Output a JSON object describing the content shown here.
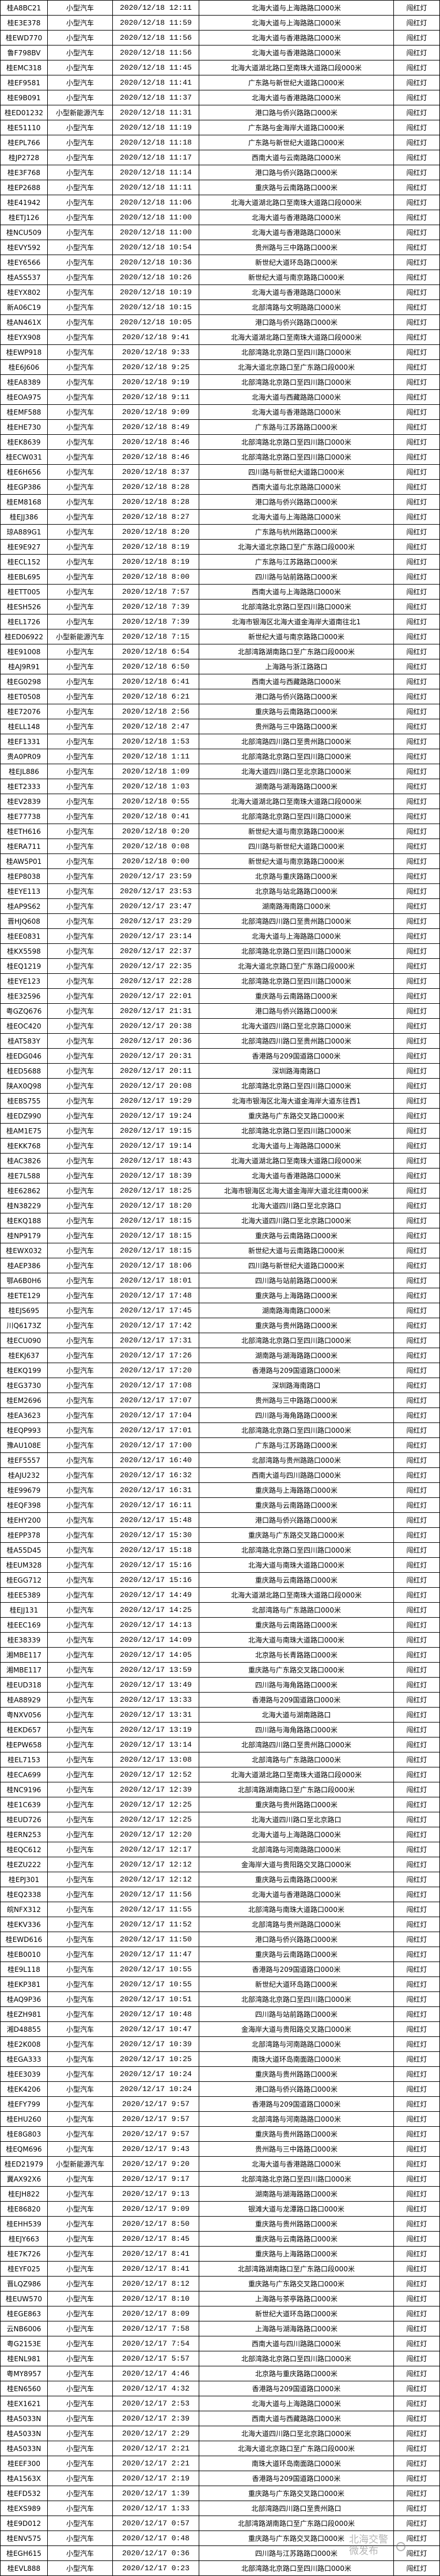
{
  "watermark": "北海交警微发布",
  "columns": [
    "plate",
    "vehicle_type",
    "time",
    "location",
    "violation"
  ],
  "rows": [
    [
      "桂A8BC21",
      "小型汽车",
      "2020/12/18 12:11",
      "北海大道与上海路路口000米",
      "闯红灯"
    ],
    [
      "桂E3E378",
      "小型汽车",
      "2020/12/18 11:59",
      "北海大道与上海路路口000米",
      "闯红灯"
    ],
    [
      "桂EWD770",
      "小型汽车",
      "2020/12/18 11:56",
      "北海大道与香港路路口000米",
      "闯红灯"
    ],
    [
      "鲁F798BV",
      "小型汽车",
      "2020/12/18 11:56",
      "北海大道与香港路路口000米",
      "闯红灯"
    ],
    [
      "桂EMC318",
      "小型汽车",
      "2020/12/18 11:45",
      "北海大道湖北路口至南珠大道路口段000米",
      "闯红灯"
    ],
    [
      "桂EF9581",
      "小型汽车",
      "2020/12/18 11:41",
      "广东路与新世纪大道路口000米",
      "闯红灯"
    ],
    [
      "桂E9B091",
      "小型汽车",
      "2020/12/18 11:37",
      "北海大道与香港路路口000米",
      "闯红灯"
    ],
    [
      "桂ED01232",
      "小型新能源汽车",
      "2020/12/18 11:31",
      "港口路与侨兴路路口000米",
      "闯红灯"
    ],
    [
      "桂E51110",
      "小型汽车",
      "2020/12/18 11:19",
      "广东路与金海岸大道路口000米",
      "闯红灯"
    ],
    [
      "桂EPL766",
      "小型汽车",
      "2020/12/18 11:18",
      "广东路与新世纪大道路口000米",
      "闯红灯"
    ],
    [
      "桂JP2728",
      "小型汽车",
      "2020/12/18 11:17",
      "西南大道与云南路路口000米",
      "闯红灯"
    ],
    [
      "桂E3F768",
      "小型汽车",
      "2020/12/18 11:14",
      "港口路与侨兴路路口000米",
      "闯红灯"
    ],
    [
      "桂EP2688",
      "小型汽车",
      "2020/12/18 11:11",
      "重庆路与云南路路口000米",
      "闯红灯"
    ],
    [
      "桂E41942",
      "小型汽车",
      "2020/12/18 11:06",
      "北海大道湖北路口至南珠大道路口段000米",
      "闯红灯"
    ],
    [
      "桂ETJ126",
      "小型汽车",
      "2020/12/18 11:00",
      "北海大道与香港路路口000米",
      "闯红灯"
    ],
    [
      "桂NCU509",
      "小型汽车",
      "2020/12/18 11:00",
      "北海大道与香港路路口000米",
      "闯红灯"
    ],
    [
      "桂EVY592",
      "小型汽车",
      "2020/12/18 10:54",
      "贵州路与三中路路口000米",
      "闯红灯"
    ],
    [
      "桂EY6566",
      "小型汽车",
      "2020/12/18 10:36",
      "新世纪大道环岛路口000米",
      "闯红灯"
    ],
    [
      "桂A5S537",
      "小型汽车",
      "2020/12/18 10:26",
      "新世纪大道与南京路路口000米",
      "闯红灯"
    ],
    [
      "桂EYX802",
      "小型汽车",
      "2020/12/18 10:19",
      "北海大道与香港路路口000米",
      "闯红灯"
    ],
    [
      "新A06C19",
      "小型汽车",
      "2020/12/18 10:15",
      "北部湾路与文明路路口000米",
      "闯红灯"
    ],
    [
      "桂AN461X",
      "小型汽车",
      "2020/12/18 10:05",
      "港口路与侨兴路路口000米",
      "闯红灯"
    ],
    [
      "桂EYX908",
      "小型汽车",
      "2020/12/18 9:41",
      "北海大道湖北路口至南珠大道路口段000米",
      "闯红灯"
    ],
    [
      "桂EWP918",
      "小型汽车",
      "2020/12/18 9:33",
      "北部湾路北京路口至四川路口000米",
      "闯红灯"
    ],
    [
      "桂E6J606",
      "小型汽车",
      "2020/12/18 9:25",
      "北海大道北京路口至广东路口段000米",
      "闯红灯"
    ],
    [
      "桂EA8389",
      "小型汽车",
      "2020/12/18 9:19",
      "北部湾路北京路口至四川路口000米",
      "闯红灯"
    ],
    [
      "桂EOA975",
      "小型汽车",
      "2020/12/18 9:11",
      "北海大道与西藏路路口000米",
      "闯红灯"
    ],
    [
      "桂EMF588",
      "小型汽车",
      "2020/12/18 9:09",
      "北海大道与香港路路口000米",
      "闯红灯"
    ],
    [
      "桂EHE730",
      "小型汽车",
      "2020/12/18 8:49",
      "广东路与江苏路路口000米",
      "闯红灯"
    ],
    [
      "桂EK8639",
      "小型汽车",
      "2020/12/18 8:46",
      "北部湾路北京路口至四川路口000米",
      "闯红灯"
    ],
    [
      "桂ECW031",
      "小型汽车",
      "2020/12/18 8:46",
      "北部湾路北京路口至四川路口000米",
      "闯红灯"
    ],
    [
      "桂E6H656",
      "小型汽车",
      "2020/12/18 8:37",
      "四川路与新世纪大道路口000米",
      "闯红灯"
    ],
    [
      "桂EGP386",
      "小型汽车",
      "2020/12/18 8:28",
      "西南大道与北京路路口000米",
      "闯红灯"
    ],
    [
      "桂EM8168",
      "小型汽车",
      "2020/12/18 8:28",
      "港口路与侨兴路路口000米",
      "闯红灯"
    ],
    [
      "桂EJJ386",
      "小型汽车",
      "2020/12/18 8:27",
      "北海大道与上海路路口000米",
      "闯红灯"
    ],
    [
      "琼A889G1",
      "小型汽车",
      "2020/12/18 8:20",
      "广东路与杭州路路口000米",
      "闯红灯"
    ],
    [
      "桂E9E927",
      "小型汽车",
      "2020/12/18 8:19",
      "北海大道北京路口至广东路口段000米",
      "闯红灯"
    ],
    [
      "桂ECL152",
      "小型汽车",
      "2020/12/18 8:19",
      "广东路与江苏路路口000米",
      "闯红灯"
    ],
    [
      "桂EBL695",
      "小型汽车",
      "2020/12/18 8:00",
      "四川路与站前路路口000米",
      "闯红灯"
    ],
    [
      "桂ETT005",
      "小型汽车",
      "2020/12/18 7:57",
      "西南大道与上海路路口000米",
      "闯红灯"
    ],
    [
      "桂ESH526",
      "小型汽车",
      "2020/12/18 7:39",
      "北部湾路北京路口至四川路口000米",
      "闯红灯"
    ],
    [
      "桂EL1726",
      "小型汽车",
      "2020/12/18 7:39",
      "北海市银海区北海大道金海岸大道南往北1",
      "闯红灯"
    ],
    [
      "桂ED06922",
      "小型新能源汽车",
      "2020/12/18 7:15",
      "新世纪大道与南京路路口000米",
      "闯红灯"
    ],
    [
      "桂E91008",
      "小型汽车",
      "2020/12/18 6:54",
      "北部湾路湖南路口至广东路口段000米",
      "闯红灯"
    ],
    [
      "桂AJ9R91",
      "小型汽车",
      "2020/12/18 6:50",
      "上海路与浙江路路口",
      "闯红灯"
    ],
    [
      "桂EG0298",
      "小型汽车",
      "2020/12/18 6:41",
      "西南大道与西藏路路口000米",
      "闯红灯"
    ],
    [
      "桂ET0508",
      "小型汽车",
      "2020/12/18 6:21",
      "港口路与侨兴路路口000米",
      "闯红灯"
    ],
    [
      "桂E72076",
      "小型汽车",
      "2020/12/18 2:56",
      "重庆路与云南路路口000米",
      "闯红灯"
    ],
    [
      "桂ELL148",
      "小型汽车",
      "2020/12/18 2:47",
      "贵州路与三中路路口000米",
      "闯红灯"
    ],
    [
      "桂EF1331",
      "小型汽车",
      "2020/12/18 1:53",
      "北部湾路四川路口至贵州路口000米",
      "闯红灯"
    ],
    [
      "贵A0PR09",
      "小型汽车",
      "2020/12/18 1:11",
      "北部湾路北京路口至四川路口000米",
      "闯红灯"
    ],
    [
      "桂EJL886",
      "小型汽车",
      "2020/12/18 1:09",
      "北海大道四川路口至北京路口000米",
      "闯红灯"
    ],
    [
      "桂ET2333",
      "小型汽车",
      "2020/12/18 1:03",
      "湖南路与湖海路路口000米",
      "闯红灯"
    ],
    [
      "桂EV2839",
      "小型汽车",
      "2020/12/18 0:55",
      "北海大道湖北路口至南珠大道路口段000米",
      "闯红灯"
    ],
    [
      "桂E77738",
      "小型汽车",
      "2020/12/18 0:41",
      "北部湾路北京路口至四川路口000米",
      "闯红灯"
    ],
    [
      "桂ETH616",
      "小型汽车",
      "2020/12/18 0:20",
      "新世纪大道与南京路路口000米",
      "闯红灯"
    ],
    [
      "桂ERA711",
      "小型汽车",
      "2020/12/18 0:08",
      "四川路与新世纪大道路口000米",
      "闯红灯"
    ],
    [
      "桂AW5P01",
      "小型汽车",
      "2020/12/18 0:00",
      "新世纪大道与南京路路口000米",
      "闯红灯"
    ],
    [
      "桂EP8038",
      "小型汽车",
      "2020/12/17 23:59",
      "北京路与重庆路路口000米",
      "闯红灯"
    ],
    [
      "桂EYE113",
      "小型汽车",
      "2020/12/17 23:53",
      "北京路与站北路路口000米",
      "闯红灯"
    ],
    [
      "桂AP9S62",
      "小型汽车",
      "2020/12/17 23:47",
      "湖南路海南路口000米",
      "闯红灯"
    ],
    [
      "晋HJQ608",
      "小型汽车",
      "2020/12/17 23:29",
      "北部湾路四川路口至贵州路口000米",
      "闯红灯"
    ],
    [
      "桂EE0831",
      "小型汽车",
      "2020/12/17 23:14",
      "北海大道与上海路路口000米",
      "闯红灯"
    ],
    [
      "桂KX5598",
      "小型汽车",
      "2020/12/17 22:37",
      "北部湾路北京路口至四川路口000米",
      "闯红灯"
    ],
    [
      "桂EQ1219",
      "小型汽车",
      "2020/12/17 22:35",
      "北海大道北京路口至广东路口段000米",
      "闯红灯"
    ],
    [
      "桂EYE123",
      "小型汽车",
      "2020/12/17 22:28",
      "北部湾路北京路口至四川路口000米",
      "闯红灯"
    ],
    [
      "桂E32596",
      "小型汽车",
      "2020/12/17 22:01",
      "重庆路与云南路路口000米",
      "闯红灯"
    ],
    [
      "粤GZQ676",
      "小型汽车",
      "2020/12/17 21:31",
      "港口路与侨兴路路口000米",
      "闯红灯"
    ],
    [
      "桂EOC420",
      "小型汽车",
      "2020/12/17 20:38",
      "北海大道四川路口至北京路口000米",
      "闯红灯"
    ],
    [
      "桂AT583Y",
      "小型汽车",
      "2020/12/17 20:36",
      "北部湾路四川路口至贵州路口000米",
      "闯红灯"
    ],
    [
      "桂EDG046",
      "小型汽车",
      "2020/12/17 20:31",
      "香港路与209国道路口000米",
      "闯红灯"
    ],
    [
      "桂ED5688",
      "小型汽车",
      "2020/12/17 20:11",
      "深圳路海南路口",
      "闯红灯"
    ],
    [
      "陕AX0Q98",
      "小型汽车",
      "2020/12/17 20:08",
      "北部湾路北京路口至四川路口000米",
      "闯红灯"
    ],
    [
      "桂EBS755",
      "小型汽车",
      "2020/12/17 19:29",
      "北海市银海区北海大道金海岸大道东往西1",
      "闯红灯"
    ],
    [
      "桂EDZ990",
      "小型汽车",
      "2020/12/17 19:24",
      "重庆路与广东路交叉路口000米",
      "闯红灯"
    ],
    [
      "桂AM1E75",
      "小型汽车",
      "2020/12/17 19:15",
      "北部湾路北京路口至四川路口000米",
      "闯红灯"
    ],
    [
      "桂EKK768",
      "小型汽车",
      "2020/12/17 19:14",
      "北海大道与上海路路口000米",
      "闯红灯"
    ],
    [
      "桂AC3826",
      "小型汽车",
      "2020/12/17 18:43",
      "北海大道湖北路口至南珠大道路口段000米",
      "闯红灯"
    ],
    [
      "桂E7L588",
      "小型汽车",
      "2020/12/17 18:39",
      "北海大道与香港路路口000米",
      "闯红灯"
    ],
    [
      "桂E62862",
      "小型汽车",
      "2020/12/17 18:25",
      "北海市银海区北海大道金海岸大道北往南000米",
      "闯红灯"
    ],
    [
      "桂N38229",
      "小型汽车",
      "2020/12/17 18:20",
      "北海大道四川路口至北京路口",
      "闯红灯"
    ],
    [
      "桂EKQ188",
      "小型汽车",
      "2020/12/17 18:15",
      "北海大道四川路口至北京路口000米",
      "闯红灯"
    ],
    [
      "桂NP9179",
      "小型汽车",
      "2020/12/17 18:15",
      "重庆路与云南路路口000米",
      "闯红灯"
    ],
    [
      "桂EWX032",
      "小型汽车",
      "2020/12/17 18:15",
      "新世纪大道与云南路路口000米",
      "闯红灯"
    ],
    [
      "桂AEP386",
      "小型汽车",
      "2020/12/17 18:06",
      "四川路与新世纪大道路口000米",
      "闯红灯"
    ],
    [
      "鄂A6B0H6",
      "小型汽车",
      "2020/12/17 18:01",
      "四川路与站前路路口000米",
      "闯红灯"
    ],
    [
      "桂ETE129",
      "小型汽车",
      "2020/12/17 17:48",
      "重庆路与上海路路口000米",
      "闯红灯"
    ],
    [
      "桂EJS695",
      "小型汽车",
      "2020/12/17 17:45",
      "湖南路海南路口000米",
      "闯红灯"
    ],
    [
      "川Q6173Z",
      "小型汽车",
      "2020/12/17 17:42",
      "重庆路与贵州路路口000米",
      "闯红灯"
    ],
    [
      "桂ECU090",
      "小型汽车",
      "2020/12/17 17:31",
      "北部湾路北京路口至四川路口000米",
      "闯红灯"
    ],
    [
      "桂EKJ637",
      "小型汽车",
      "2020/12/17 17:26",
      "湖南路与湖海路路口000米",
      "闯红灯"
    ],
    [
      "桂EKQ199",
      "小型汽车",
      "2020/12/17 17:20",
      "香港路与209国道路口000米",
      "闯红灯"
    ],
    [
      "桂EG3730",
      "小型汽车",
      "2020/12/17 17:08",
      "深圳路海南路口",
      "闯红灯"
    ],
    [
      "桂EM2696",
      "小型汽车",
      "2020/12/17 17:07",
      "贵州路与三中路路口000米",
      "闯红灯"
    ],
    [
      "桂EA3623",
      "小型汽车",
      "2020/12/17 17:04",
      "四川路与海角路路口000米",
      "闯红灯"
    ],
    [
      "桂EQP993",
      "小型汽车",
      "2020/12/17 17:01",
      "北部湾路北京路口至四川路口000米",
      "闯红灯"
    ],
    [
      "豫AU108E",
      "小型汽车",
      "2020/12/17 17:00",
      "广东路与江苏路路口000米",
      "闯红灯"
    ],
    [
      "桂EF5557",
      "小型汽车",
      "2020/12/17 16:40",
      "北部湾路与贵州路路口000米",
      "闯红灯"
    ],
    [
      "桂AJU232",
      "小型汽车",
      "2020/12/17 16:32",
      "西南大道与四川路路口000米",
      "闯红灯"
    ],
    [
      "桂E99679",
      "小型汽车",
      "2020/12/17 16:31",
      "重庆路与上海路路口000米",
      "闯红灯"
    ],
    [
      "桂EQF398",
      "小型汽车",
      "2020/12/17 16:11",
      "重庆路与云南路路口000米",
      "闯红灯"
    ],
    [
      "桂EHY200",
      "小型汽车",
      "2020/12/17 15:48",
      "港口路与侨兴路路口000米",
      "闯红灯"
    ],
    [
      "桂EPP378",
      "小型汽车",
      "2020/12/17 15:30",
      "重庆路与广东路交叉路口000米",
      "闯红灯"
    ],
    [
      "桂A55D45",
      "小型汽车",
      "2020/12/17 15:18",
      "北部湾路北京路口至四川路口000米",
      "闯红灯"
    ],
    [
      "桂EUM328",
      "小型汽车",
      "2020/12/17 15:16",
      "北海大道与南珠大道路口000米",
      "闯红灯"
    ],
    [
      "桂EGG712",
      "小型汽车",
      "2020/12/17 15:16",
      "重庆路与云南路路口000米",
      "闯红灯"
    ],
    [
      "桂EE5389",
      "小型汽车",
      "2020/12/17 14:49",
      "北海大道湖北路口至南珠大道路口段000米",
      "闯红灯"
    ],
    [
      "桂EJJ131",
      "小型汽车",
      "2020/12/17 14:25",
      "北部湾路与广东路路口000米",
      "闯红灯"
    ],
    [
      "桂EEC169",
      "小型汽车",
      "2020/12/17 14:13",
      "重庆路与云南路路口000米",
      "闯红灯"
    ],
    [
      "桂E38339",
      "小型汽车",
      "2020/12/17 14:09",
      "北海大道与南珠大道路口000米",
      "闯红灯"
    ],
    [
      "湘MBE117",
      "小型汽车",
      "2020/12/17 14:05",
      "北京路与长青路路口000米",
      "闯红灯"
    ],
    [
      "湘MBE117",
      "小型汽车",
      "2020/12/17 13:59",
      "重庆路与广东路交叉路口000米",
      "闯红灯"
    ],
    [
      "桂EUD318",
      "小型汽车",
      "2020/12/17 13:49",
      "四川路与海角路路口000米",
      "闯红灯"
    ],
    [
      "桂A88929",
      "小型汽车",
      "2020/12/17 13:33",
      "香港路与209国道路口000米",
      "闯红灯"
    ],
    [
      "粤NXV056",
      "小型汽车",
      "2020/12/17 13:31",
      "北海大道与湖南路路口",
      "闯红灯"
    ],
    [
      "桂EKD657",
      "小型汽车",
      "2020/12/17 13:19",
      "四川路与海角路路口000米",
      "闯红灯"
    ],
    [
      "桂EPW658",
      "小型汽车",
      "2020/12/17 13:14",
      "北部湾路四川路口至贵州路口000米",
      "闯红灯"
    ],
    [
      "桂EL7153",
      "小型汽车",
      "2020/12/17 13:08",
      "北部湾路与广东路路口000米",
      "闯红灯"
    ],
    [
      "桂ECA699",
      "小型汽车",
      "2020/12/17 12:52",
      "北海大道湖北路口至南珠大道路口段000米",
      "闯红灯"
    ],
    [
      "桂NC9196",
      "小型汽车",
      "2020/12/17 12:39",
      "北部湾路湖南路口至广东路口段000米",
      "闯红灯"
    ],
    [
      "桂E1C639",
      "小型汽车",
      "2020/12/17 12:25",
      "重庆路与贵州路路口000米",
      "闯红灯"
    ],
    [
      "桂EUD726",
      "小型汽车",
      "2020/12/17 12:25",
      "北海大道四川路口至北京路口",
      "闯红灯"
    ],
    [
      "桂ERN253",
      "小型汽车",
      "2020/12/17 12:20",
      "北海大道与上海路路口000米",
      "闯红灯"
    ],
    [
      "桂EQC612",
      "小型汽车",
      "2020/12/17 12:17",
      "北部湾路与河南路路口000米",
      "闯红灯"
    ],
    [
      "桂EZU222",
      "小型汽车",
      "2020/12/17 12:12",
      "金海岸大道与贵阳路交叉路口000米",
      "闯红灯"
    ],
    [
      "桂EPJ301",
      "小型汽车",
      "2020/12/17 12:12",
      "重庆路与云南路路口000米",
      "闯红灯"
    ],
    [
      "桂EQ2338",
      "小型汽车",
      "2020/12/17 11:56",
      "北海大道与香港路路口000米",
      "闯红灯"
    ],
    [
      "皖NFX312",
      "小型汽车",
      "2020/12/17 11:55",
      "北部湾路与南珠大道路口000米",
      "闯红灯"
    ],
    [
      "桂EKV336",
      "小型汽车",
      "2020/12/17 11:52",
      "北部湾路与贵州路路口000米",
      "闯红灯"
    ],
    [
      "桂EWD616",
      "小型汽车",
      "2020/12/17 11:50",
      "港口路与侨兴路路口000米",
      "闯红灯"
    ],
    [
      "桂EB0010",
      "小型汽车",
      "2020/12/17 11:47",
      "重庆路与云南路路口000米",
      "闯红灯"
    ],
    [
      "桂E9L118",
      "小型汽车",
      "2020/12/17 10:55",
      "香港路与209国道路口000米",
      "闯红灯"
    ],
    [
      "桂EKP381",
      "小型汽车",
      "2020/12/17 10:55",
      "新世纪大道环岛路口000米",
      "闯红灯"
    ],
    [
      "桂AQ9P36",
      "小型汽车",
      "2020/12/17 10:51",
      "北部湾路北京路口至四川路口000米",
      "闯红灯"
    ],
    [
      "桂EZH981",
      "小型汽车",
      "2020/12/17 10:48",
      "四川路与站前路路口000米",
      "闯红灯"
    ],
    [
      "湘D48855",
      "小型汽车",
      "2020/12/17 10:47",
      "金海岸大道与贵阳路交叉路口000米",
      "闯红灯"
    ],
    [
      "桂E2K008",
      "小型汽车",
      "2020/12/17 10:39",
      "北部湾路与河南路路口000米",
      "闯红灯"
    ],
    [
      "桂EGA333",
      "小型汽车",
      "2020/12/17 10:25",
      "南珠大道环岛南面路口000米",
      "闯红灯"
    ],
    [
      "桂EE3039",
      "小型汽车",
      "2020/12/17 10:24",
      "重庆路与贵州路路口000米",
      "闯红灯"
    ],
    [
      "桂EK4206",
      "小型汽车",
      "2020/12/17 10:24",
      "港口路与侨兴路路口000米",
      "闯红灯"
    ],
    [
      "桂EFY799",
      "小型汽车",
      "2020/12/17 9:57",
      "香港路与209国道路口000米",
      "闯红灯"
    ],
    [
      "桂EHU260",
      "小型汽车",
      "2020/12/17 9:57",
      "北部湾路与河南路路口000米",
      "闯红灯"
    ],
    [
      "桂E8G803",
      "小型汽车",
      "2020/12/17 9:57",
      "重庆路与贵州路路口000米",
      "闯红灯"
    ],
    [
      "桂EQM696",
      "小型汽车",
      "2020/12/17 9:43",
      "贵州路与三中路路口000米",
      "闯红灯"
    ],
    [
      "桂ED21979",
      "小型新能源汽车",
      "2020/12/17 9:20",
      "北海大道与香港路路口000米",
      "闯红灯"
    ],
    [
      "冀AX92X6",
      "小型汽车",
      "2020/12/17 9:17",
      "北部湾路北京路口至四川路口000米",
      "闯红灯"
    ],
    [
      "桂EJH822",
      "小型汽车",
      "2020/12/17 9:13",
      "湖南路与湖海路路口000米",
      "闯红灯"
    ],
    [
      "桂E86820",
      "小型汽车",
      "2020/12/17 9:09",
      "银滩大道与龙潭路口路口000米",
      "闯红灯"
    ],
    [
      "桂EHH539",
      "小型汽车",
      "2020/12/17 8:50",
      "重庆路与贵州路路口000米",
      "闯红灯"
    ],
    [
      "桂EJY663",
      "小型汽车",
      "2020/12/17 8:45",
      "重庆路与云南路路口000米",
      "闯红灯"
    ],
    [
      "桂E7K726",
      "小型汽车",
      "2020/12/17 8:41",
      "重庆路与上海路路口000米",
      "闯红灯"
    ],
    [
      "桂EYF025",
      "小型汽车",
      "2020/12/17 8:41",
      "北部湾路湖南路口至广东路口段000米",
      "闯红灯"
    ],
    [
      "晋LQZ986",
      "小型汽车",
      "2020/12/17 8:12",
      "重庆路与广东路交叉路口000米",
      "闯红灯"
    ],
    [
      "桂EUW570",
      "小型汽车",
      "2020/12/17 8:10",
      "上海路与茶亭路路口000米",
      "闯红灯"
    ],
    [
      "桂EGE863",
      "小型汽车",
      "2020/12/17 8:09",
      "新世纪大道环岛路口000米",
      "闯红灯"
    ],
    [
      "云NB6006",
      "小型汽车",
      "2020/12/17 7:58",
      "上海路与湖海路路口000米",
      "闯红灯"
    ],
    [
      "粤G2153E",
      "小型汽车",
      "2020/12/17 7:54",
      "西南大道与四川路路口000米",
      "闯红灯"
    ],
    [
      "桂ENL981",
      "小型汽车",
      "2020/12/17 5:57",
      "北部湾路北京路口至四川路口000米",
      "闯红灯"
    ],
    [
      "粤MY8957",
      "小型汽车",
      "2020/12/17 4:46",
      "北京路与重庆路路口000米",
      "闯红灯"
    ],
    [
      "桂EN6560",
      "小型汽车",
      "2020/12/17 4:32",
      "香港路与209国道路口000米",
      "闯红灯"
    ],
    [
      "桂EX1621",
      "小型汽车",
      "2020/12/17 2:53",
      "北海大道与上海路路口000米",
      "闯红灯"
    ],
    [
      "桂A5033N",
      "小型汽车",
      "2020/12/17 2:39",
      "西南大道与西藏路路口000米",
      "闯红灯"
    ],
    [
      "桂A5033N",
      "小型汽车",
      "2020/12/17 2:29",
      "北海大道四川路口至北京路口000米",
      "闯红灯"
    ],
    [
      "桂A5033N",
      "小型汽车",
      "2020/12/17 2:21",
      "北海大道北京路口至广东路口段000米",
      "闯红灯"
    ],
    [
      "桂EEF300",
      "小型汽车",
      "2020/12/17 2:21",
      "南珠大道环岛南面路口000米",
      "闯红灯"
    ],
    [
      "桂A1563X",
      "小型汽车",
      "2020/12/17 2:19",
      "香港路与209国道路口000米",
      "闯红灯"
    ],
    [
      "桂EFD532",
      "小型汽车",
      "2020/12/17 1:39",
      "重庆路与广东路交叉路口000米",
      "闯红灯"
    ],
    [
      "桂EXS989",
      "小型汽车",
      "2020/12/17 1:33",
      "北部湾路四川路口至贵州路口",
      "闯红灯"
    ],
    [
      "桂E9D012",
      "小型汽车",
      "2020/12/17 0:57",
      "北部湾路湖南路口至广东路口段000米",
      "闯红灯"
    ],
    [
      "桂ENV575",
      "小型汽车",
      "2020/12/17 0:48",
      "重庆路与广东路交叉路口000米",
      "闯红灯"
    ],
    [
      "桂EGH615",
      "小型汽车",
      "2020/12/17 0:36",
      "四川路与江苏路路口000米",
      "闯红灯"
    ],
    [
      "桂EVL888",
      "小型汽车",
      "2020/12/17 0:23",
      "北部湾路北京路口至四川路口000米",
      "闯红灯"
    ]
  ]
}
